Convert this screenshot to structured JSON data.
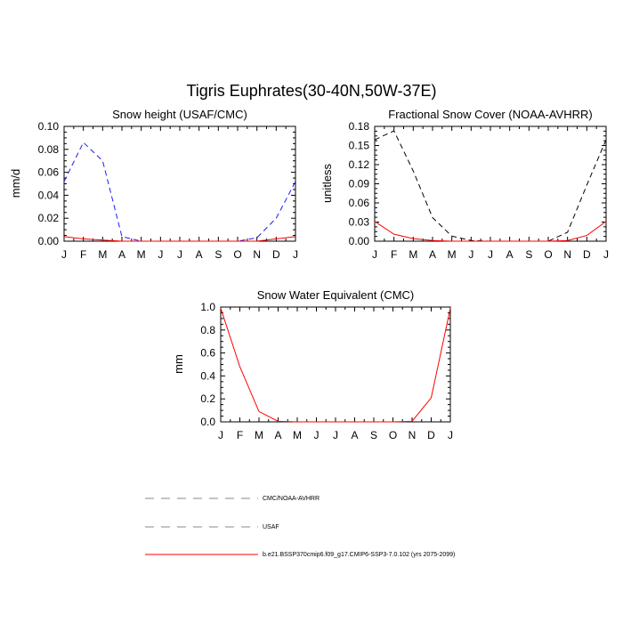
{
  "figure": {
    "title": "Tigris Euphrates(30-40N,50W-37E)"
  },
  "chart_data": [
    {
      "type": "line",
      "title": "Snow height (USAF/CMC)",
      "xlabel": "",
      "ylabel": "mm/d",
      "x": [
        "J",
        "F",
        "M",
        "A",
        "M",
        "J",
        "J",
        "A",
        "S",
        "O",
        "N",
        "D",
        "J"
      ],
      "ylim": [
        0,
        0.1
      ],
      "yticks": [
        "0.00",
        "0.02",
        "0.04",
        "0.06",
        "0.08",
        "0.10"
      ],
      "series": [
        {
          "name": "USAF",
          "color": "#1a1aff",
          "dash": "dashed",
          "values": [
            0.052,
            0.086,
            0.07,
            0.004,
            0.0,
            0.0,
            0.0,
            0.0,
            0.0,
            0.0,
            0.003,
            0.02,
            0.052
          ]
        },
        {
          "name": "b.e21.BSSP370cmip6.f09_g17.CMIP6-SSP3-7.0.102 (yrs 2075-2099)",
          "color": "#ff0000",
          "dash": "solid",
          "values": [
            0.004,
            0.002,
            0.001,
            0.0,
            0.0,
            0.0,
            0.0,
            0.0,
            0.0,
            0.0,
            0.0,
            0.002,
            0.004
          ]
        }
      ]
    },
    {
      "type": "line",
      "title": "Fractional Snow Cover (NOAA-AVHRR)",
      "xlabel": "",
      "ylabel": "unitless",
      "x": [
        "J",
        "F",
        "M",
        "A",
        "M",
        "J",
        "J",
        "A",
        "S",
        "O",
        "N",
        "D",
        "J"
      ],
      "ylim": [
        0,
        0.18
      ],
      "yticks": [
        "0.00",
        "0.03",
        "0.06",
        "0.09",
        "0.12",
        "0.15",
        "0.18"
      ],
      "series": [
        {
          "name": "CMC/NOAA-AVHRR",
          "color": "#000000",
          "dash": "dashed",
          "values": [
            0.159,
            0.173,
            0.11,
            0.037,
            0.008,
            0.001,
            0.0,
            0.0,
            0.0,
            0.0,
            0.014,
            0.088,
            0.159
          ]
        },
        {
          "name": "b.e21.BSSP370cmip6.f09_g17.CMIP6-SSP3-7.0.102 (yrs 2075-2099)",
          "color": "#ff0000",
          "dash": "solid",
          "values": [
            0.031,
            0.011,
            0.004,
            0.001,
            0.0,
            0.0,
            0.0,
            0.0,
            0.0,
            0.0,
            0.001,
            0.009,
            0.031
          ]
        }
      ]
    },
    {
      "type": "line",
      "title": "Snow Water Equivalent (CMC)",
      "xlabel": "",
      "ylabel": "mm",
      "x": [
        "J",
        "F",
        "M",
        "A",
        "M",
        "J",
        "J",
        "A",
        "S",
        "O",
        "N",
        "D",
        "J"
      ],
      "ylim": [
        0,
        1.0
      ],
      "yticks": [
        "0.0",
        "0.2",
        "0.4",
        "0.6",
        "0.8",
        "1.0"
      ],
      "series": [
        {
          "name": "CMC/NOAA-AVHRR",
          "color": "#000000",
          "dash": "dashed",
          "values": [
            0.0,
            0.0,
            0.0,
            0.0,
            0.0,
            0.0,
            0.0,
            0.0,
            0.0,
            0.0,
            0.0,
            0.0,
            0.0
          ]
        },
        {
          "name": "b.e21.BSSP370cmip6.f09_g17.CMIP6-SSP3-7.0.102 (yrs 2075-2099)",
          "color": "#ff0000",
          "dash": "solid",
          "values": [
            0.99,
            0.48,
            0.09,
            0.005,
            0.0,
            0.0,
            0.0,
            0.0,
            0.0,
            0.0,
            0.005,
            0.21,
            0.99
          ]
        }
      ]
    }
  ],
  "legend": {
    "placement": "bottom",
    "entries": [
      {
        "label": "CMC/NOAA-AVHRR",
        "color": "#888888",
        "dash": "dashed"
      },
      {
        "label": "USAF",
        "color": "#888888",
        "dash": "dashed"
      },
      {
        "label": "b.e21.BSSP370cmip6.f09_g17.CMIP6-SSP3-7.0.102 (yrs 2075-2099)",
        "color": "#ff0000",
        "dash": "solid"
      }
    ]
  }
}
